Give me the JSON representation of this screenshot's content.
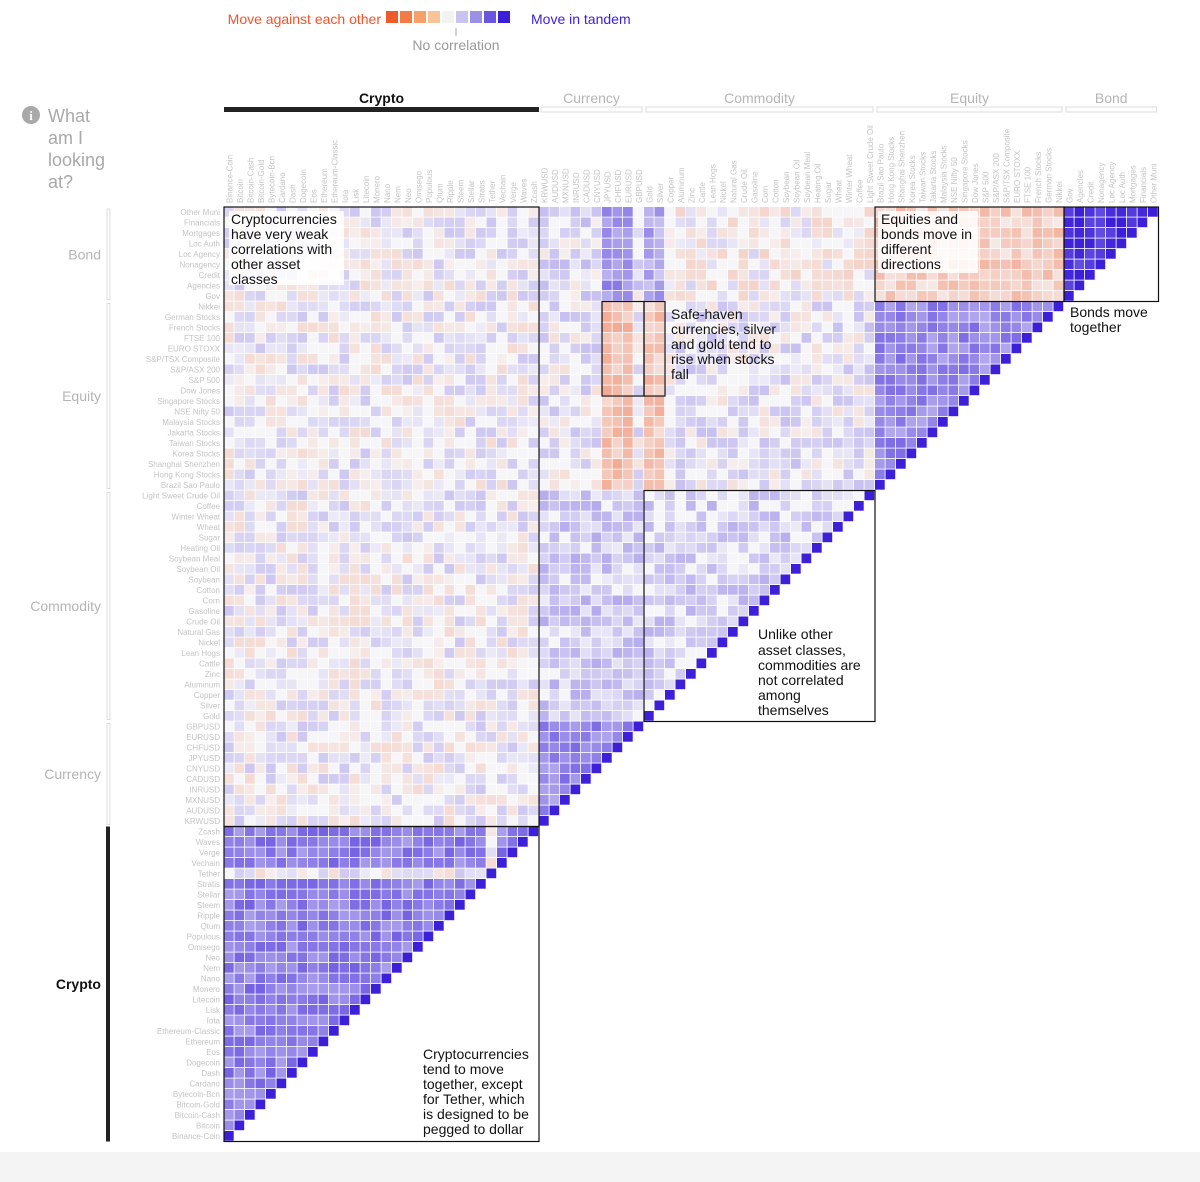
{
  "legend": {
    "negative_label": "Move against each other",
    "positive_label": "Move in tandem",
    "zero_label": "No correlation",
    "negative_color": "#f0552a",
    "positive_color": "#3b1fd9",
    "swatches": [
      "#ef5a2a",
      "#f37b45",
      "#f7a068",
      "#f9c598",
      "#f2f2f2",
      "#c9c3f0",
      "#9b8fe6",
      "#6a55de",
      "#3b1fd9"
    ]
  },
  "help": {
    "icon": "info-icon",
    "lines": [
      "What",
      "am I",
      "looking",
      "at?"
    ]
  },
  "groups": [
    {
      "name": "Crypto",
      "active": true
    },
    {
      "name": "Currency",
      "active": false
    },
    {
      "name": "Commodity",
      "active": false
    },
    {
      "name": "Equity",
      "active": false
    },
    {
      "name": "Bond",
      "active": false
    }
  ],
  "annotations": [
    {
      "id": "crypto-vs-others",
      "lines": [
        "Cryptocurrencies",
        "have very weak",
        "correlations with",
        "other asset",
        "classes"
      ]
    },
    {
      "id": "equities-bonds",
      "lines": [
        "Equities and",
        "bonds move in",
        "different",
        "directions"
      ]
    },
    {
      "id": "bonds-together",
      "lines": [
        "Bonds move",
        "together"
      ]
    },
    {
      "id": "safe-haven",
      "lines": [
        "Safe-haven",
        "currencies, silver",
        "and gold tend to",
        "rise when stocks",
        "fall"
      ]
    },
    {
      "id": "commodities",
      "lines": [
        "Unlike other",
        "asset classes,",
        "commodities are",
        "not correlated",
        "among",
        "themselves"
      ]
    },
    {
      "id": "crypto-together",
      "lines": [
        "Cryptocurrencies",
        "tend to move",
        "together, except",
        "for Tether, which",
        "is designed to be",
        "pegged to dollar"
      ]
    }
  ],
  "chart_data": {
    "type": "heatmap",
    "value_range": [
      -1,
      1
    ],
    "asset_groups": {
      "Crypto": [
        "Binance-Coin",
        "Bitcoin",
        "Bitcoin-Cash",
        "Bitcoin-Gold",
        "Bytecoin-Bcn",
        "Cardano",
        "Dash",
        "Dogecoin",
        "Eos",
        "Ethereum",
        "Ethereum-Classic",
        "Iota",
        "Lisk",
        "Litecoin",
        "Monero",
        "Nano",
        "Nem",
        "Neo",
        "Omisego",
        "Populous",
        "Qtum",
        "Ripple",
        "Steem",
        "Stellar",
        "Stratis",
        "Tether",
        "Vechain",
        "Verge",
        "Waves",
        "Zcash"
      ],
      "Currency": [
        "KRWUSD",
        "AUDUSD",
        "MXNUSD",
        "INRUSD",
        "CADUSD",
        "CNYUSD",
        "JPYUSD",
        "CHFUSD",
        "EURUSD",
        "GBPUSD"
      ],
      "Commodity": [
        "Gold",
        "Silver",
        "Copper",
        "Aluminum",
        "Zinc",
        "Cattle",
        "Lean Hogs",
        "Nickel",
        "Natural Gas",
        "Crude Oil",
        "Gasoline",
        "Corn",
        "Cotton",
        "Soybean",
        "Soybean Oil",
        "Soybean Meal",
        "Heating Oil",
        "Sugar",
        "Wheat",
        "Winter Wheat",
        "Coffee",
        "Light Sweet Crude Oil"
      ],
      "Equity": [
        "Brazil Sao Paulo",
        "Hong Kong Stocks",
        "Shanghai Shenzhen",
        "Korea Stocks",
        "Taiwan Stocks",
        "Jakarta Stocks",
        "Malaysia Stocks",
        "NSE Nifty 50",
        "Singapore Stocks",
        "Dow Jones",
        "S&P 500",
        "S&P/ASX 200",
        "S&P/TSX Composite",
        "EURO STOXX",
        "FTSE 100",
        "French Stocks",
        "German Stocks",
        "Nikkei"
      ],
      "Bond": [
        "Gov",
        "Agencies",
        "Credit",
        "Nonagency",
        "Loc Agency",
        "Loc Auth",
        "Mortgages",
        "Financials",
        "Other Muni"
      ]
    }
  }
}
